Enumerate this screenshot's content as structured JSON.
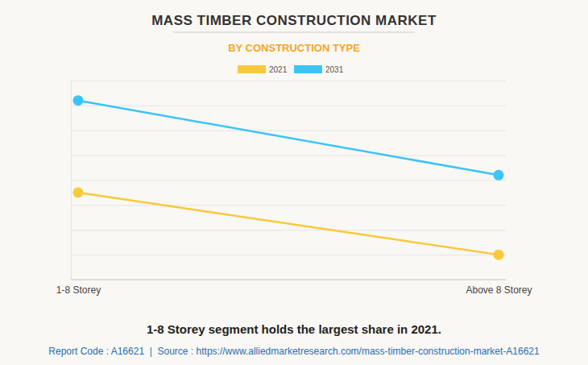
{
  "chart_data": {
    "type": "line",
    "title": "MASS TIMBER CONSTRUCTION MARKET",
    "subtitle": "BY CONSTRUCTION TYPE",
    "annotations": [
      "1-8 Storey segment holds the largest share in 2021.",
      "Report Code : A16621  |  Source : https://www.alliedmarketresearch.com/mass-timber-construction-market-A16621"
    ],
    "categories": [
      "1-8 Storey",
      "Above 8 Storey"
    ],
    "series": [
      {
        "name": "2021",
        "color": "#f8c93a",
        "values": [
          3.5,
          1.0
        ],
        "marker": "circle"
      },
      {
        "name": "2031",
        "color": "#3cc4f7",
        "values": [
          7.2,
          4.2
        ],
        "marker": "circle"
      }
    ],
    "ylim": [
      0,
      8
    ],
    "yticks": [
      0,
      1,
      2,
      3,
      4,
      5,
      6,
      7,
      8
    ],
    "grid": true,
    "tick_labels": "x",
    "legend": "top"
  }
}
